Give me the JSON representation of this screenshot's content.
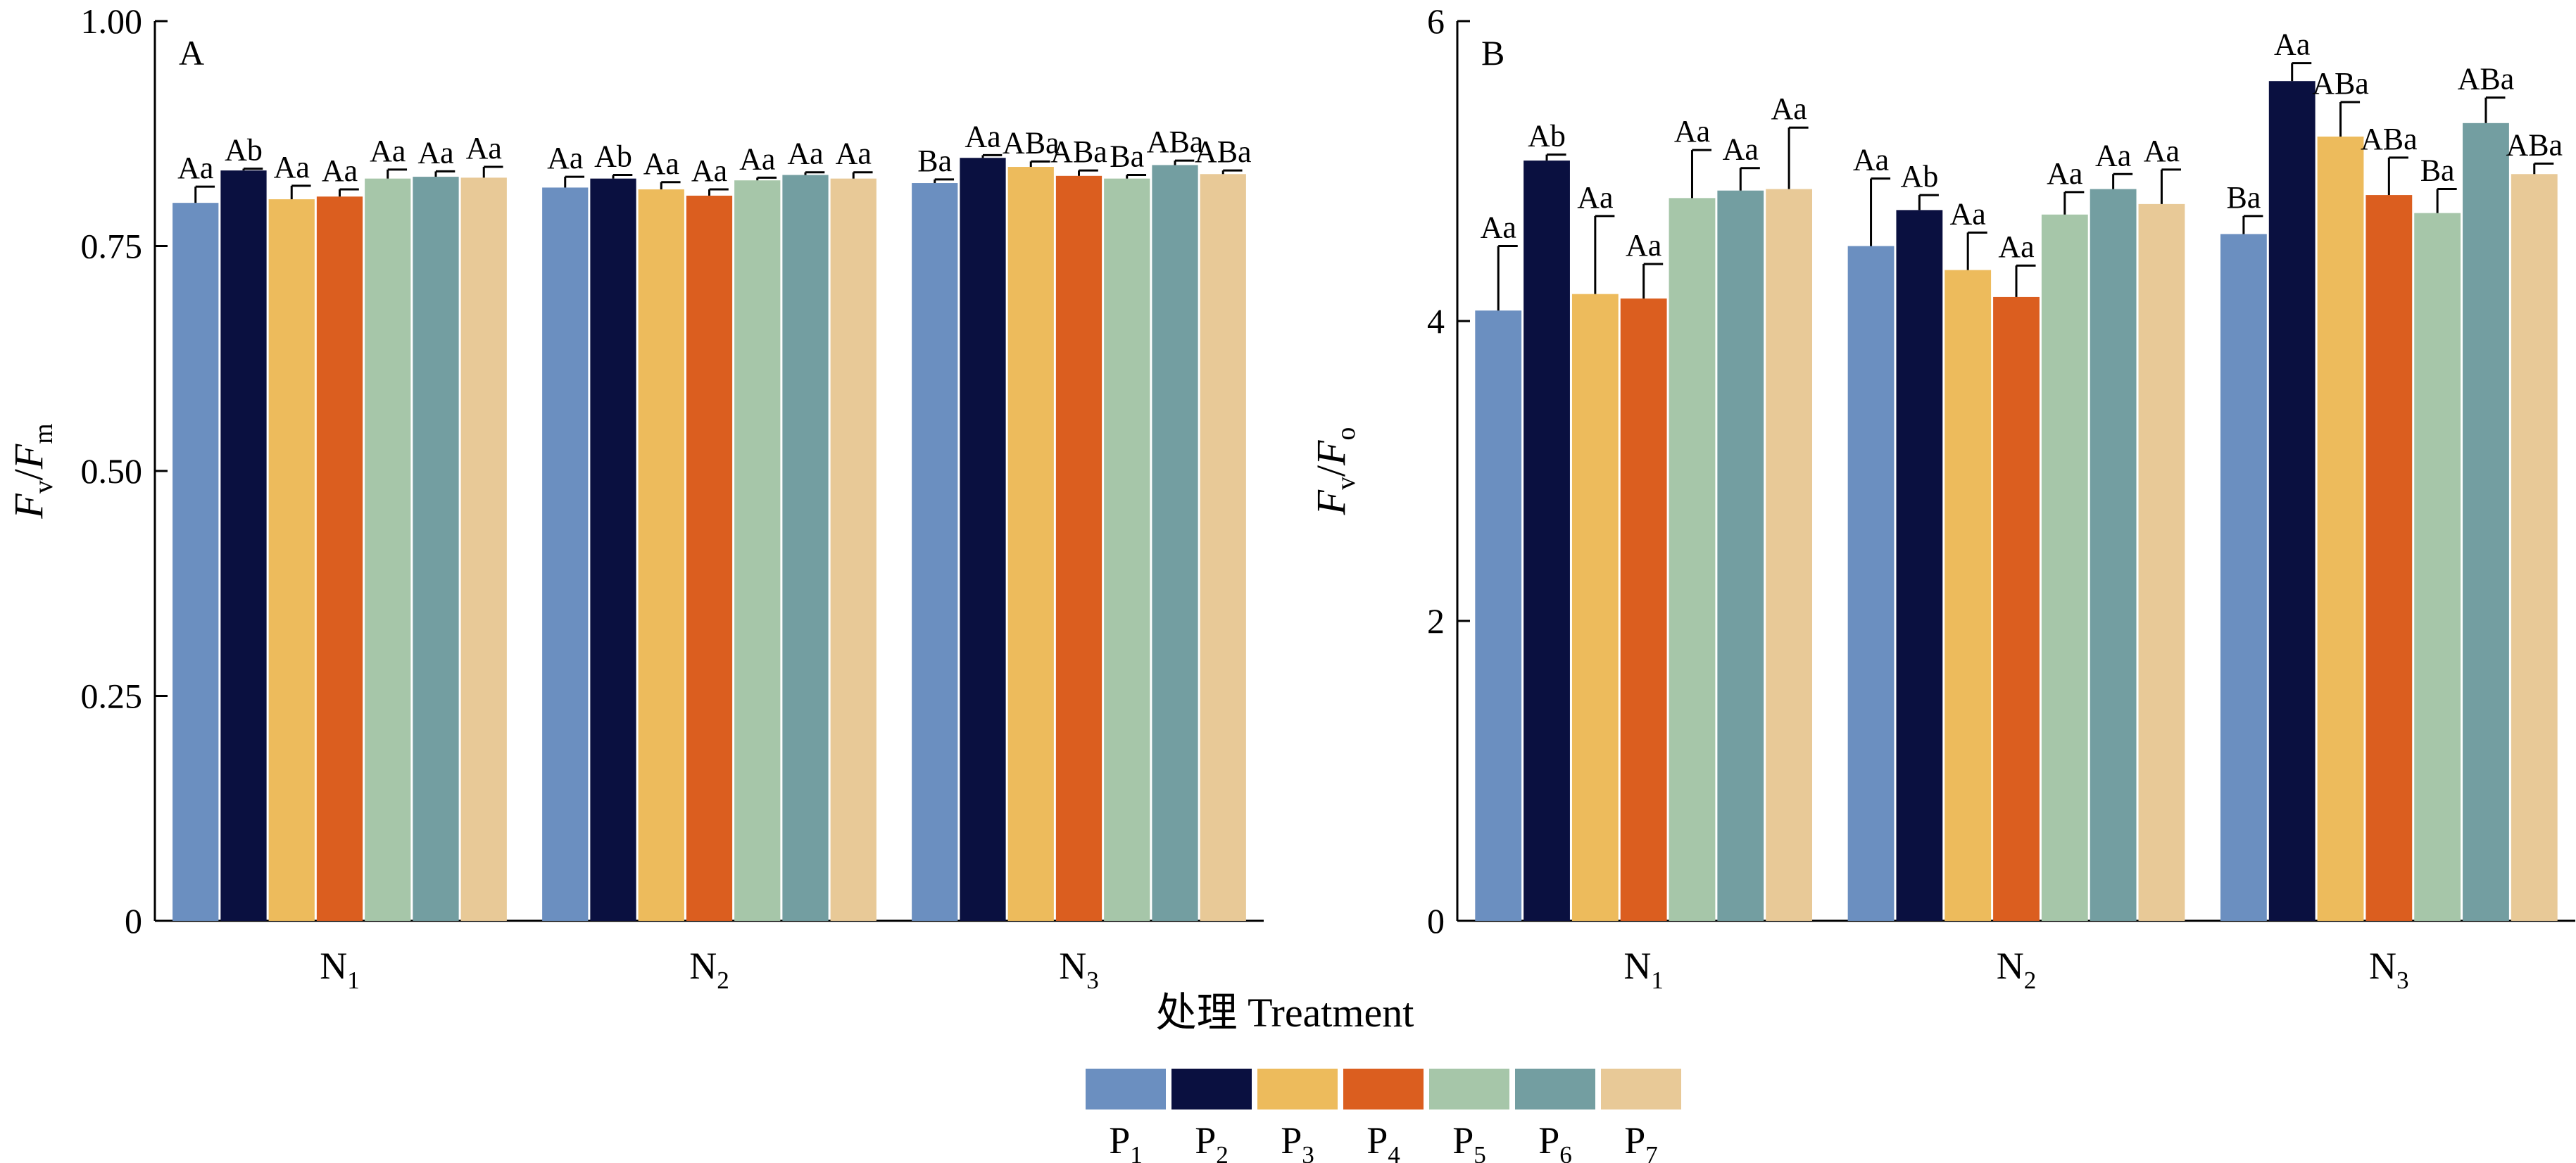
{
  "chart_data": [
    {
      "type": "bar",
      "panel": "A",
      "ylabel": {
        "main": "F",
        "sub1": "v",
        "slash": "/",
        "main2": "F",
        "sub2": "m"
      },
      "ylim": [
        0,
        1.0
      ],
      "yticks": [
        0,
        0.25,
        0.5,
        0.75,
        1.0
      ],
      "ytick_labels": [
        "0",
        "0.25",
        "0.50",
        "0.75",
        "1.00"
      ],
      "categories": [
        "N1",
        "N2",
        "N3"
      ],
      "series": [
        {
          "name": "P1",
          "values": [
            0.798,
            0.815,
            0.82
          ],
          "errors": [
            0.018,
            0.012,
            0.004
          ],
          "labels": [
            "Aa",
            "Aa",
            "Ba"
          ]
        },
        {
          "name": "P2",
          "values": [
            0.834,
            0.825,
            0.848
          ],
          "errors": [
            0.002,
            0.004,
            0.003
          ],
          "labels": [
            "Ab",
            "Ab",
            "Aa"
          ]
        },
        {
          "name": "P3",
          "values": [
            0.802,
            0.813,
            0.838
          ],
          "errors": [
            0.015,
            0.008,
            0.006
          ],
          "labels": [
            "Aa",
            "Aa",
            "ABa"
          ]
        },
        {
          "name": "P4",
          "values": [
            0.805,
            0.806,
            0.828
          ],
          "errors": [
            0.008,
            0.007,
            0.006
          ],
          "labels": [
            "Aa",
            "Aa",
            "ABa"
          ]
        },
        {
          "name": "P5",
          "values": [
            0.825,
            0.823,
            0.825
          ],
          "errors": [
            0.01,
            0.003,
            0.004
          ],
          "labels": [
            "Aa",
            "Aa",
            "Ba"
          ]
        },
        {
          "name": "P6",
          "values": [
            0.827,
            0.829,
            0.84
          ],
          "errors": [
            0.006,
            0.003,
            0.005
          ],
          "labels": [
            "Aa",
            "Aa",
            "ABa"
          ]
        },
        {
          "name": "P7",
          "values": [
            0.826,
            0.825,
            0.83
          ],
          "errors": [
            0.012,
            0.007,
            0.004
          ],
          "labels": [
            "Aa",
            "Aa",
            "ABa"
          ]
        }
      ]
    },
    {
      "type": "bar",
      "panel": "B",
      "ylabel": {
        "main": "F",
        "sub1": "v",
        "slash": "/",
        "main2": "F",
        "sub2": "o"
      },
      "ylim": [
        0,
        6
      ],
      "yticks": [
        0,
        2,
        4,
        6
      ],
      "ytick_labels": [
        "0",
        "2",
        "4",
        "6"
      ],
      "categories": [
        "N1",
        "N2",
        "N3"
      ],
      "series": [
        {
          "name": "P1",
          "values": [
            4.07,
            4.5,
            4.58
          ],
          "errors": [
            0.43,
            0.45,
            0.12
          ],
          "labels": [
            "Aa",
            "Aa",
            "Ba"
          ]
        },
        {
          "name": "P2",
          "values": [
            5.07,
            4.74,
            5.6
          ],
          "errors": [
            0.04,
            0.1,
            0.12
          ],
          "labels": [
            "Ab",
            "Ab",
            "Aa"
          ]
        },
        {
          "name": "P3",
          "values": [
            4.18,
            4.34,
            5.23
          ],
          "errors": [
            0.52,
            0.25,
            0.23
          ],
          "labels": [
            "Aa",
            "Aa",
            "ABa"
          ]
        },
        {
          "name": "P4",
          "values": [
            4.15,
            4.16,
            4.84
          ],
          "errors": [
            0.23,
            0.21,
            0.25
          ],
          "labels": [
            "Aa",
            "Aa",
            "ABa"
          ]
        },
        {
          "name": "P5",
          "values": [
            4.82,
            4.71,
            4.72
          ],
          "errors": [
            0.32,
            0.15,
            0.16
          ],
          "labels": [
            "Aa",
            "Aa",
            "Ba"
          ]
        },
        {
          "name": "P6",
          "values": [
            4.87,
            4.88,
            5.32
          ],
          "errors": [
            0.15,
            0.1,
            0.17
          ],
          "labels": [
            "Aa",
            "Aa",
            "ABa"
          ]
        },
        {
          "name": "P7",
          "values": [
            4.88,
            4.78,
            4.98
          ],
          "errors": [
            0.41,
            0.23,
            0.07
          ],
          "labels": [
            "Aa",
            "Aa",
            "ABa"
          ]
        }
      ]
    }
  ],
  "category_labels": [
    {
      "main": "N",
      "sub": "1"
    },
    {
      "main": "N",
      "sub": "2"
    },
    {
      "main": "N",
      "sub": "3"
    }
  ],
  "xlabel": "处理 Treatment",
  "legend": [
    {
      "main": "P",
      "sub": "1",
      "color": "#6b8fc0"
    },
    {
      "main": "P",
      "sub": "2",
      "color": "#0a1040"
    },
    {
      "main": "P",
      "sub": "3",
      "color": "#edbb5c"
    },
    {
      "main": "P",
      "sub": "4",
      "color": "#db5e1f"
    },
    {
      "main": "P",
      "sub": "5",
      "color": "#a6c6a9"
    },
    {
      "main": "P",
      "sub": "6",
      "color": "#739ea1"
    },
    {
      "main": "P",
      "sub": "7",
      "color": "#e8c997"
    }
  ]
}
